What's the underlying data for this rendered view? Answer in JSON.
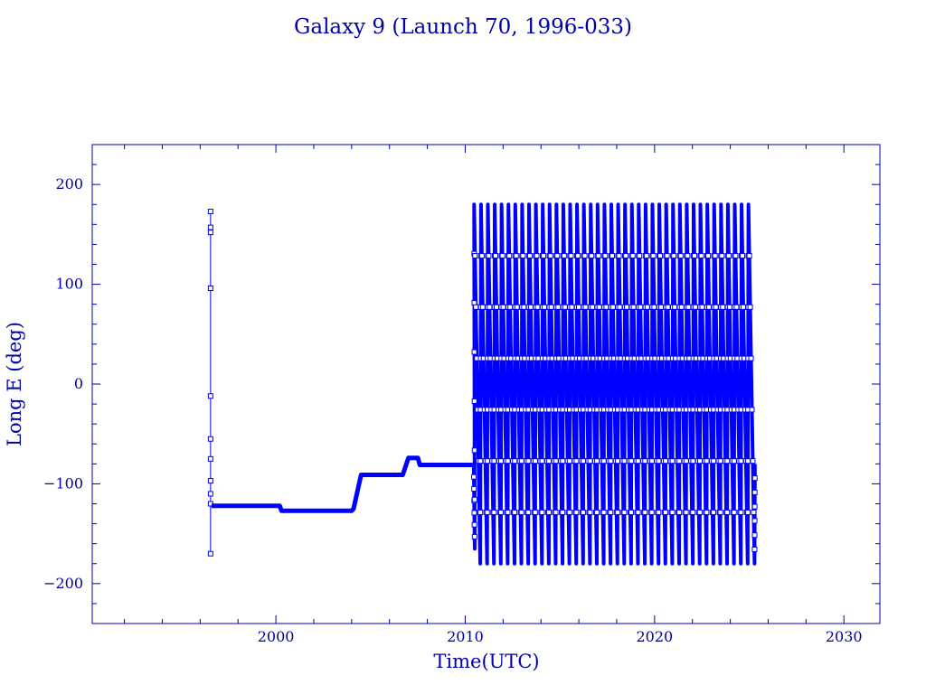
{
  "chart_data": {
    "type": "line",
    "title": "Galaxy 9 (Launch 70, 1996-033)",
    "xlabel": "Time(UTC)",
    "ylabel": "Long E (deg)",
    "xlim": [
      1990.3,
      2031.9
    ],
    "ylim": [
      -240,
      240
    ],
    "xticks": [
      2000,
      2010,
      2020,
      2030
    ],
    "yticks": [
      -200,
      -100,
      0,
      100,
      200
    ],
    "xtick_labels": [
      "2000",
      "2010",
      "2020",
      "2030"
    ],
    "ytick_labels": [
      "−200",
      "−100",
      "0",
      "100",
      "200"
    ],
    "grid": false,
    "marker": "open-square",
    "color": "#0000ff",
    "series": [
      {
        "segment": "launch-transfer",
        "x": [
          1996.55,
          1996.55,
          1996.55,
          1996.55,
          1996.55,
          1996.55,
          1996.55,
          1996.55,
          1996.55,
          1996.55,
          1996.55
        ],
        "y": [
          173,
          157,
          152,
          96,
          -12,
          -55,
          -75,
          -97,
          -110,
          -120,
          -170
        ]
      },
      {
        "segment": "geostationary-station-keeping",
        "x": [
          1996.6,
          1997.0,
          1998.0,
          1999.0,
          2000.2,
          2000.3,
          2000.4,
          2001.0,
          2002.0,
          2003.0,
          2004.0,
          2004.1,
          2004.5,
          2005.0,
          2006.0,
          2006.7,
          2007.0,
          2007.5,
          2007.6,
          2008.0,
          2009.0,
          2010.0,
          2010.4
        ],
        "y": [
          -122,
          -122,
          -122,
          -122,
          -122,
          -127,
          -127,
          -127,
          -127,
          -127,
          -127,
          -125,
          -91,
          -91,
          -91,
          -91,
          -74,
          -74,
          -81,
          -81,
          -81,
          -81,
          -81
        ]
      },
      {
        "segment": "post-drift-circulation",
        "x_start": 2010.45,
        "x_end": 2025.3,
        "cycles": 41,
        "y_range": [
          -180,
          180
        ],
        "y_end": -80
      }
    ]
  }
}
